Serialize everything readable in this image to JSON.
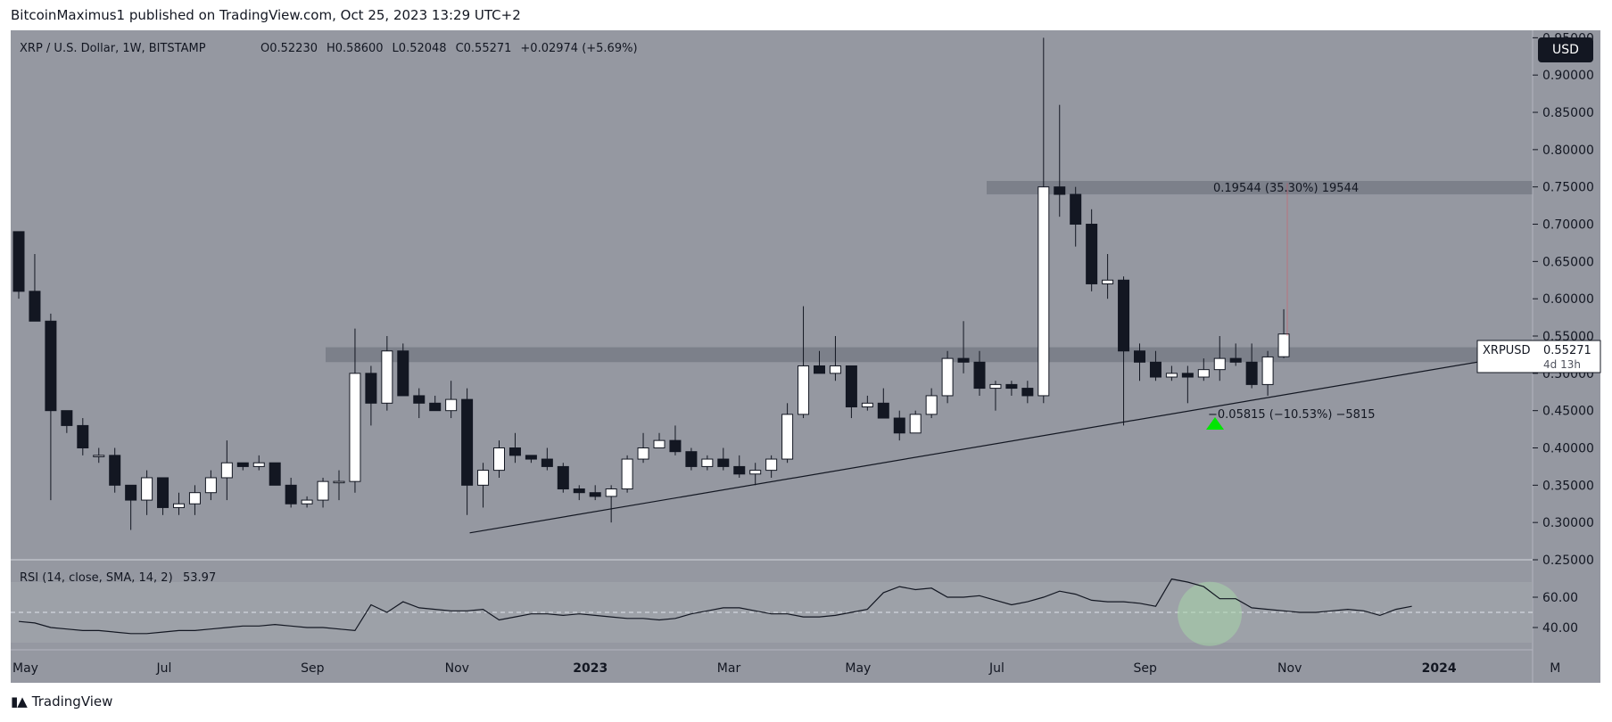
{
  "header": {
    "published": "BitcoinMaximus1 published on TradingView.com, Oct 25, 2023 13:29 UTC+2"
  },
  "footer": {
    "brand": "TradingView"
  },
  "currency_button": "USD",
  "legend": {
    "symbol": "XRP / U.S. Dollar, 1W, BITSTAMP",
    "o_label": "O",
    "o": "0.52230",
    "h_label": "H",
    "h": "0.58600",
    "l_label": "L",
    "l": "0.52048",
    "c_label": "C",
    "c": "0.55271",
    "change": "+0.02974 (+5.69%)"
  },
  "price_tag": {
    "symbol": "XRPUSD",
    "price": "0.55271",
    "countdown": "4d 13h"
  },
  "measure_up": "0.19544 (35.30%) 19544",
  "measure_down": "−0.05815 (−10.53%) −5815",
  "rsi_legend": {
    "label": "RSI (14, close, SMA, 14, 2)",
    "value": "53.97"
  },
  "colors": {
    "bg": "#9598a1",
    "up": "#ffffff",
    "down": "#131722",
    "zone": "#787b86",
    "arrow": "#00e600",
    "circle": "#a5d6a7"
  },
  "chart_data": {
    "type": "candlestick",
    "title": "XRP / U.S. Dollar, 1W, BITSTAMP",
    "y_ticks": [
      "0.95000",
      "0.90000",
      "0.85000",
      "0.80000",
      "0.75000",
      "0.70000",
      "0.65000",
      "0.60000",
      "0.55000",
      "0.50000",
      "0.45000",
      "0.40000",
      "0.35000",
      "0.30000",
      "0.25000"
    ],
    "ylim": [
      0.25,
      0.96
    ],
    "x_ticks": [
      {
        "label": "May",
        "week": 0
      },
      {
        "label": "Jul",
        "week": 9
      },
      {
        "label": "Sep",
        "week": 18
      },
      {
        "label": "Nov",
        "week": 27
      },
      {
        "label": "2023",
        "week": 35
      },
      {
        "label": "Mar",
        "week": 44
      },
      {
        "label": "May",
        "week": 52
      },
      {
        "label": "Jul",
        "week": 61
      },
      {
        "label": "Sep",
        "week": 70
      },
      {
        "label": "Nov",
        "week": 79
      },
      {
        "label": "2024",
        "week": 88
      },
      {
        "label": "M",
        "week": 96
      }
    ],
    "candles": [
      [
        0.69,
        0.69,
        0.6,
        0.61
      ],
      [
        0.61,
        0.66,
        0.57,
        0.57
      ],
      [
        0.57,
        0.58,
        0.33,
        0.45
      ],
      [
        0.45,
        0.45,
        0.42,
        0.43
      ],
      [
        0.43,
        0.44,
        0.39,
        0.4
      ],
      [
        0.39,
        0.4,
        0.38,
        0.39
      ],
      [
        0.39,
        0.4,
        0.34,
        0.35
      ],
      [
        0.35,
        0.35,
        0.29,
        0.33
      ],
      [
        0.33,
        0.37,
        0.31,
        0.36
      ],
      [
        0.36,
        0.36,
        0.31,
        0.32
      ],
      [
        0.32,
        0.34,
        0.31,
        0.325
      ],
      [
        0.325,
        0.35,
        0.31,
        0.34
      ],
      [
        0.34,
        0.37,
        0.33,
        0.36
      ],
      [
        0.36,
        0.41,
        0.33,
        0.38
      ],
      [
        0.38,
        0.38,
        0.37,
        0.375
      ],
      [
        0.375,
        0.39,
        0.37,
        0.38
      ],
      [
        0.38,
        0.38,
        0.35,
        0.35
      ],
      [
        0.35,
        0.36,
        0.32,
        0.325
      ],
      [
        0.325,
        0.335,
        0.32,
        0.33
      ],
      [
        0.33,
        0.36,
        0.32,
        0.355
      ],
      [
        0.355,
        0.37,
        0.33,
        0.355
      ],
      [
        0.355,
        0.56,
        0.34,
        0.5
      ],
      [
        0.5,
        0.51,
        0.43,
        0.46
      ],
      [
        0.46,
        0.55,
        0.45,
        0.53
      ],
      [
        0.53,
        0.54,
        0.47,
        0.47
      ],
      [
        0.47,
        0.48,
        0.44,
        0.46
      ],
      [
        0.46,
        0.47,
        0.45,
        0.45
      ],
      [
        0.45,
        0.49,
        0.44,
        0.465
      ],
      [
        0.465,
        0.48,
        0.31,
        0.35
      ],
      [
        0.35,
        0.38,
        0.32,
        0.37
      ],
      [
        0.37,
        0.41,
        0.36,
        0.4
      ],
      [
        0.4,
        0.42,
        0.38,
        0.39
      ],
      [
        0.39,
        0.39,
        0.38,
        0.385
      ],
      [
        0.385,
        0.4,
        0.37,
        0.375
      ],
      [
        0.375,
        0.38,
        0.34,
        0.345
      ],
      [
        0.345,
        0.35,
        0.33,
        0.34
      ],
      [
        0.34,
        0.35,
        0.33,
        0.335
      ],
      [
        0.335,
        0.35,
        0.3,
        0.345
      ],
      [
        0.345,
        0.39,
        0.34,
        0.385
      ],
      [
        0.385,
        0.42,
        0.38,
        0.4
      ],
      [
        0.4,
        0.42,
        0.4,
        0.41
      ],
      [
        0.41,
        0.43,
        0.39,
        0.395
      ],
      [
        0.395,
        0.4,
        0.37,
        0.375
      ],
      [
        0.375,
        0.39,
        0.37,
        0.385
      ],
      [
        0.385,
        0.4,
        0.37,
        0.375
      ],
      [
        0.375,
        0.39,
        0.36,
        0.365
      ],
      [
        0.365,
        0.38,
        0.35,
        0.37
      ],
      [
        0.37,
        0.39,
        0.36,
        0.385
      ],
      [
        0.385,
        0.46,
        0.38,
        0.445
      ],
      [
        0.445,
        0.59,
        0.44,
        0.51
      ],
      [
        0.51,
        0.53,
        0.5,
        0.5
      ],
      [
        0.5,
        0.55,
        0.49,
        0.51
      ],
      [
        0.51,
        0.51,
        0.44,
        0.455
      ],
      [
        0.455,
        0.47,
        0.45,
        0.46
      ],
      [
        0.46,
        0.48,
        0.44,
        0.44
      ],
      [
        0.44,
        0.45,
        0.41,
        0.42
      ],
      [
        0.42,
        0.45,
        0.42,
        0.445
      ],
      [
        0.445,
        0.48,
        0.44,
        0.47
      ],
      [
        0.47,
        0.53,
        0.46,
        0.52
      ],
      [
        0.52,
        0.57,
        0.5,
        0.515
      ],
      [
        0.515,
        0.53,
        0.47,
        0.48
      ],
      [
        0.48,
        0.49,
        0.45,
        0.485
      ],
      [
        0.485,
        0.49,
        0.47,
        0.48
      ],
      [
        0.48,
        0.49,
        0.46,
        0.47
      ],
      [
        0.47,
        0.95,
        0.46,
        0.75
      ],
      [
        0.75,
        0.86,
        0.71,
        0.74
      ],
      [
        0.74,
        0.75,
        0.67,
        0.7
      ],
      [
        0.7,
        0.72,
        0.61,
        0.62
      ],
      [
        0.62,
        0.66,
        0.6,
        0.625
      ],
      [
        0.625,
        0.63,
        0.43,
        0.53
      ],
      [
        0.53,
        0.54,
        0.49,
        0.515
      ],
      [
        0.515,
        0.53,
        0.49,
        0.495
      ],
      [
        0.495,
        0.51,
        0.49,
        0.5
      ],
      [
        0.5,
        0.51,
        0.46,
        0.495
      ],
      [
        0.495,
        0.52,
        0.49,
        0.505
      ],
      [
        0.505,
        0.55,
        0.49,
        0.52
      ],
      [
        0.52,
        0.54,
        0.51,
        0.515
      ],
      [
        0.515,
        0.54,
        0.48,
        0.485
      ],
      [
        0.485,
        0.53,
        0.47,
        0.522
      ],
      [
        0.5223,
        0.586,
        0.52048,
        0.55271
      ]
    ],
    "support_zone_1": [
      0.515,
      0.535
    ],
    "resistance_zone": [
      0.74,
      0.758
    ],
    "trendline": {
      "from": {
        "week": 29,
        "price": 0.31
      },
      "to": {
        "week": 89,
        "price": 0.535
      }
    },
    "rsi": {
      "ylim": [
        30,
        80
      ],
      "y_ticks": [
        "60.00",
        "40.00"
      ],
      "upper_band": 70,
      "lower_band": 30,
      "mid_line": 50,
      "values": [
        44,
        43,
        40,
        39,
        38,
        38,
        37,
        36,
        36,
        37,
        38,
        38,
        39,
        40,
        41,
        41,
        42,
        41,
        40,
        40,
        39,
        38,
        55,
        50,
        57,
        53,
        52,
        51,
        51,
        52,
        45,
        47,
        49,
        49,
        48,
        49,
        48,
        47,
        46,
        46,
        45,
        46,
        49,
        51,
        53,
        53,
        51,
        49,
        49,
        47,
        47,
        48,
        50,
        52,
        63,
        67,
        65,
        66,
        60,
        60,
        61,
        58,
        55,
        57,
        60,
        64,
        62,
        58,
        57,
        57,
        56,
        54,
        72,
        70,
        67,
        59,
        59,
        53,
        52,
        51,
        50,
        50,
        51,
        52,
        51,
        48,
        52,
        54
      ]
    }
  }
}
